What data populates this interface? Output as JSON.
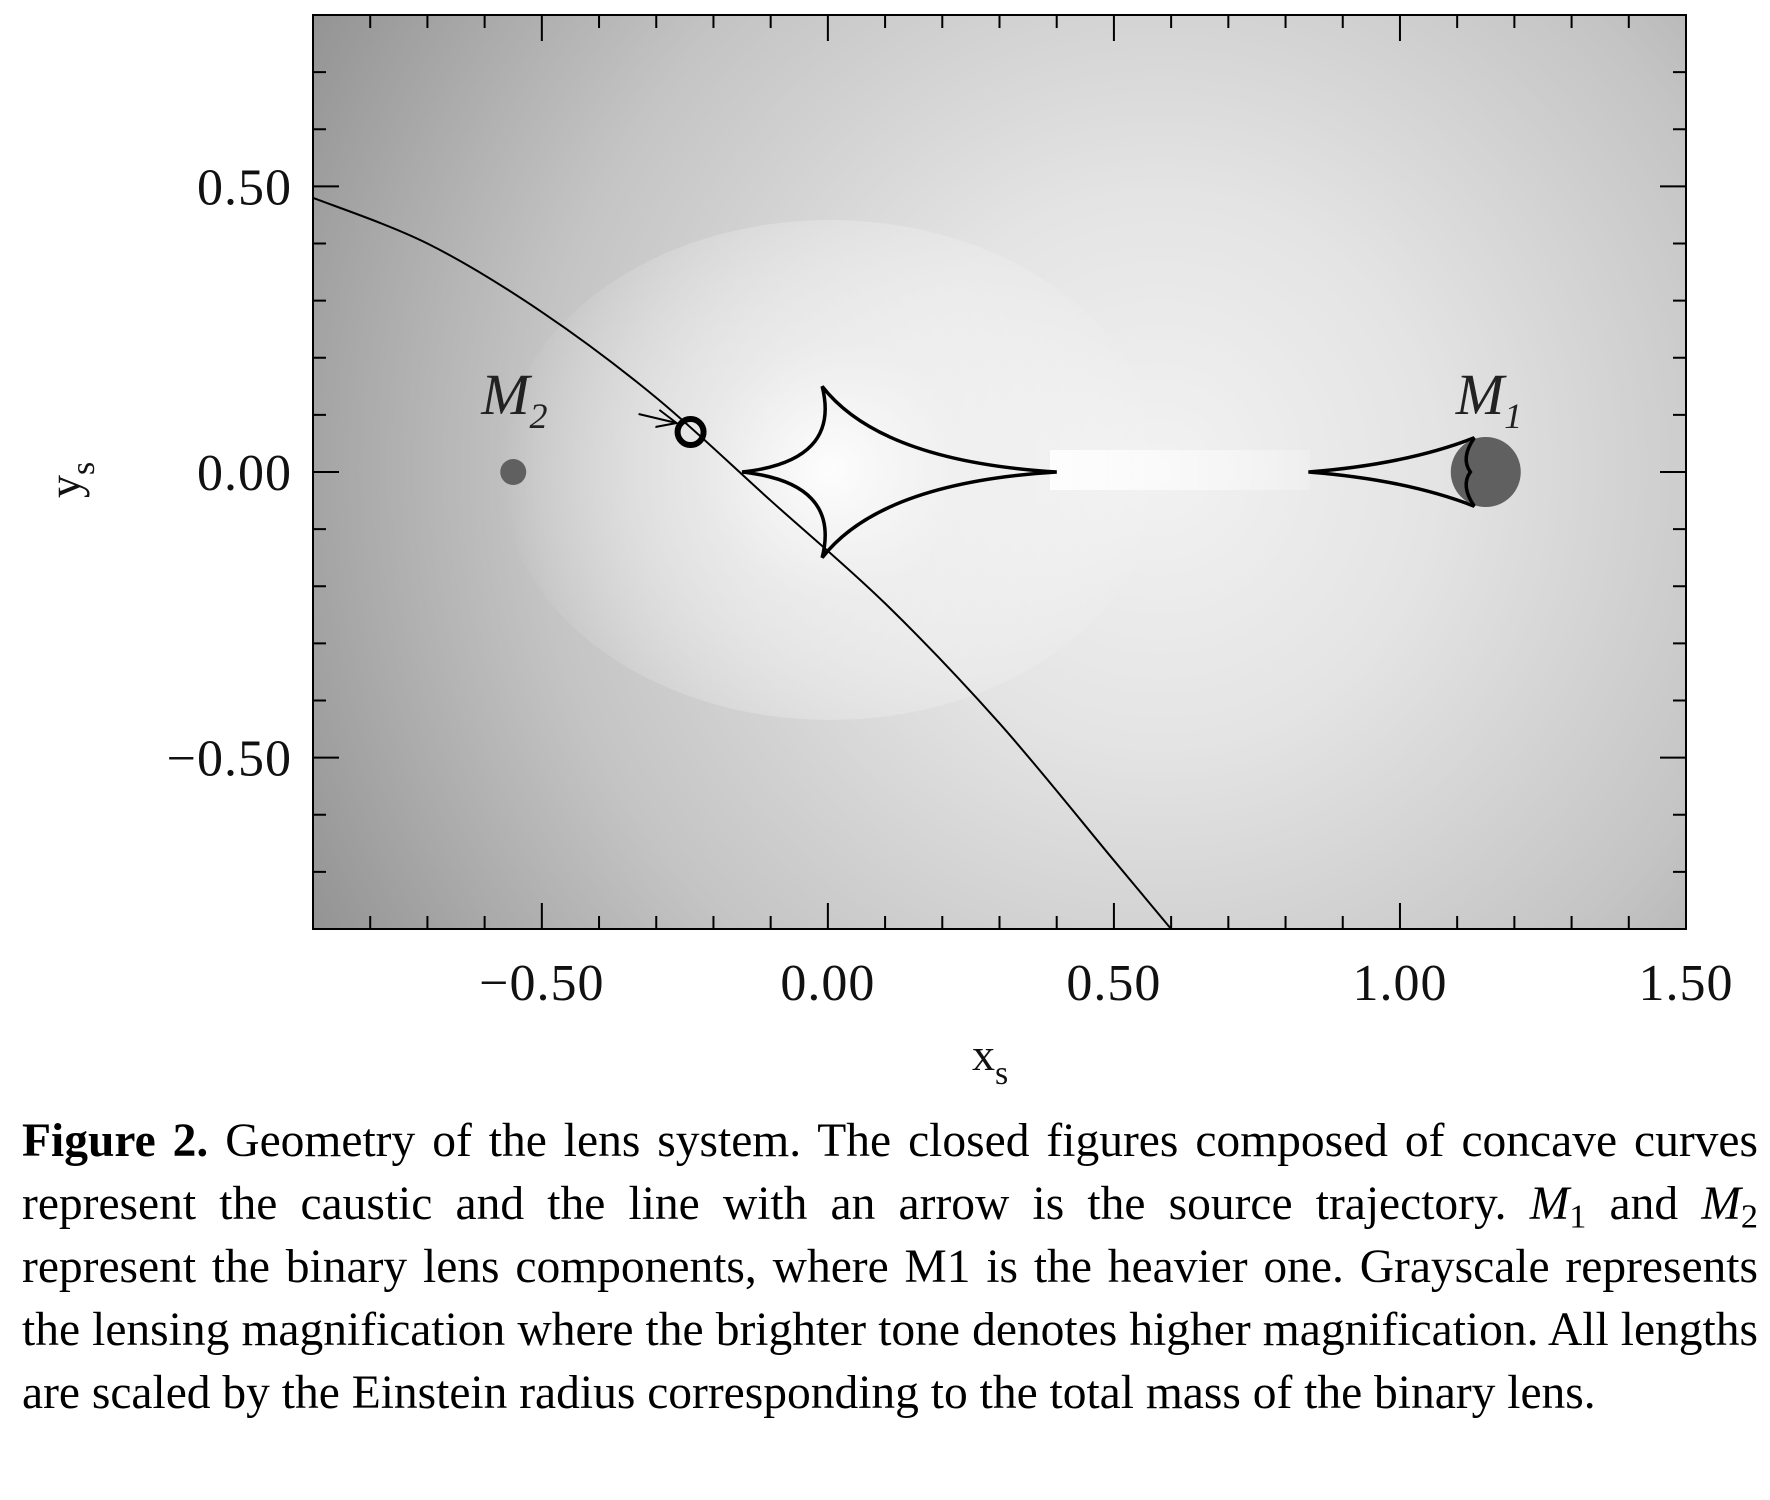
{
  "chart_data": {
    "type": "scatter",
    "xlabel": "x",
    "xlabel_sub": "s",
    "ylabel": "y",
    "ylabel_sub": "s",
    "xlim": [
      -0.9,
      1.5
    ],
    "ylim": [
      -0.8,
      0.8
    ],
    "x_ticks": [
      -0.5,
      0.0,
      0.5,
      1.0,
      1.5
    ],
    "x_tick_labels": [
      "−0.50",
      "0.00",
      "0.50",
      "1.00",
      "1.50"
    ],
    "y_ticks": [
      -0.5,
      0.0,
      0.5
    ],
    "y_tick_labels": [
      "−0.50",
      "0.00",
      "0.50"
    ],
    "lens_components": [
      {
        "label": "M",
        "label_sub": "1",
        "x": 1.15,
        "y": 0.0
      },
      {
        "label": "M",
        "label_sub": "2",
        "x": -0.55,
        "y": 0.0
      }
    ],
    "central_caustic": {
      "cusps": [
        [
          -0.15,
          0.0
        ],
        [
          -0.01,
          0.15
        ],
        [
          0.4,
          0.0
        ],
        [
          -0.01,
          -0.15
        ]
      ]
    },
    "planetary_caustic": {
      "cusps": [
        [
          0.84,
          0.0
        ],
        [
          1.13,
          0.06
        ],
        [
          1.13,
          -0.06
        ]
      ]
    },
    "trajectory": {
      "x": [
        -0.9,
        -0.7,
        -0.5,
        -0.3,
        -0.1,
        0.1,
        0.3,
        0.5,
        0.6
      ],
      "y": [
        0.48,
        0.4,
        0.28,
        0.13,
        -0.05,
        -0.23,
        -0.44,
        -0.68,
        -0.8
      ]
    },
    "source_position": [
      -0.24,
      0.07
    ]
  },
  "caption": {
    "label": "Figure 2.",
    "line1": " Geometry of the lens system. The closed figures composed of concave curves represent the caustic and the line with an arrow is the source trajectory. ",
    "m1": "M",
    "m1_sub": "1",
    "and": " and ",
    "m2": "M",
    "m2_sub": "2",
    "line2": " represent the binary lens components, where M1 is the heavier one. Grayscale represents the lensing magnification where the brighter tone denotes higher magnification. All lengths are scaled by the Einstein radius corresponding to the total mass of the binary lens."
  }
}
